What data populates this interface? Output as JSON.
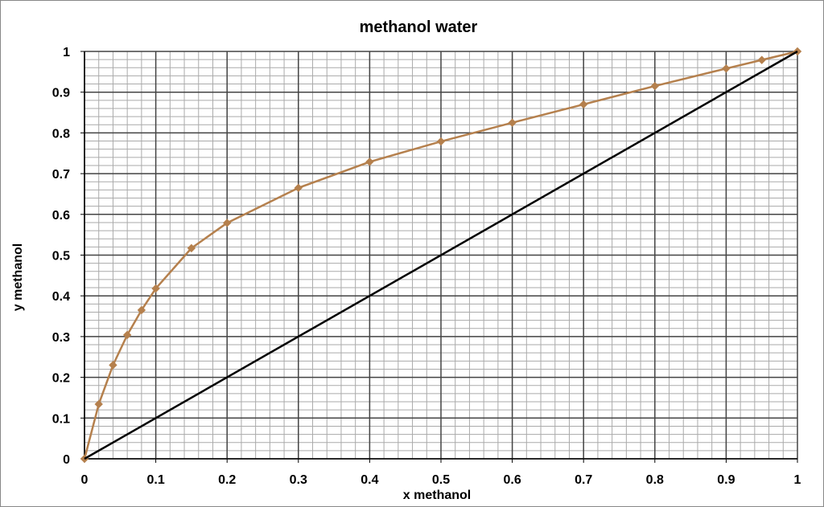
{
  "chart_data": {
    "type": "line",
    "title": "methanol water",
    "x_label": "x methanol",
    "y_label": "y methanol",
    "xlim": [
      0,
      1
    ],
    "ylim": [
      0,
      1
    ],
    "xticks": [
      0,
      0.1,
      0.2,
      0.3,
      0.4,
      0.5,
      0.6,
      0.7,
      0.8,
      0.9,
      1
    ],
    "yticks": [
      0,
      0.1,
      0.2,
      0.3,
      0.4,
      0.5,
      0.6,
      0.7,
      0.8,
      0.9,
      1
    ],
    "grid": true,
    "minor_step": 0.02,
    "series": [
      {
        "color": "#b5804d",
        "marker": true,
        "x": [
          0,
          0.02,
          0.04,
          0.06,
          0.08,
          0.1,
          0.15,
          0.2,
          0.3,
          0.4,
          0.5,
          0.6,
          0.7,
          0.8,
          0.9,
          0.95,
          1
        ],
        "values": [
          0,
          0.134,
          0.23,
          0.304,
          0.365,
          0.418,
          0.517,
          0.579,
          0.665,
          0.729,
          0.779,
          0.825,
          0.87,
          0.915,
          0.958,
          0.979,
          1
        ]
      },
      {
        "color": "#000000",
        "marker": false,
        "x": [
          0,
          1
        ],
        "values": [
          0,
          1
        ]
      }
    ]
  }
}
